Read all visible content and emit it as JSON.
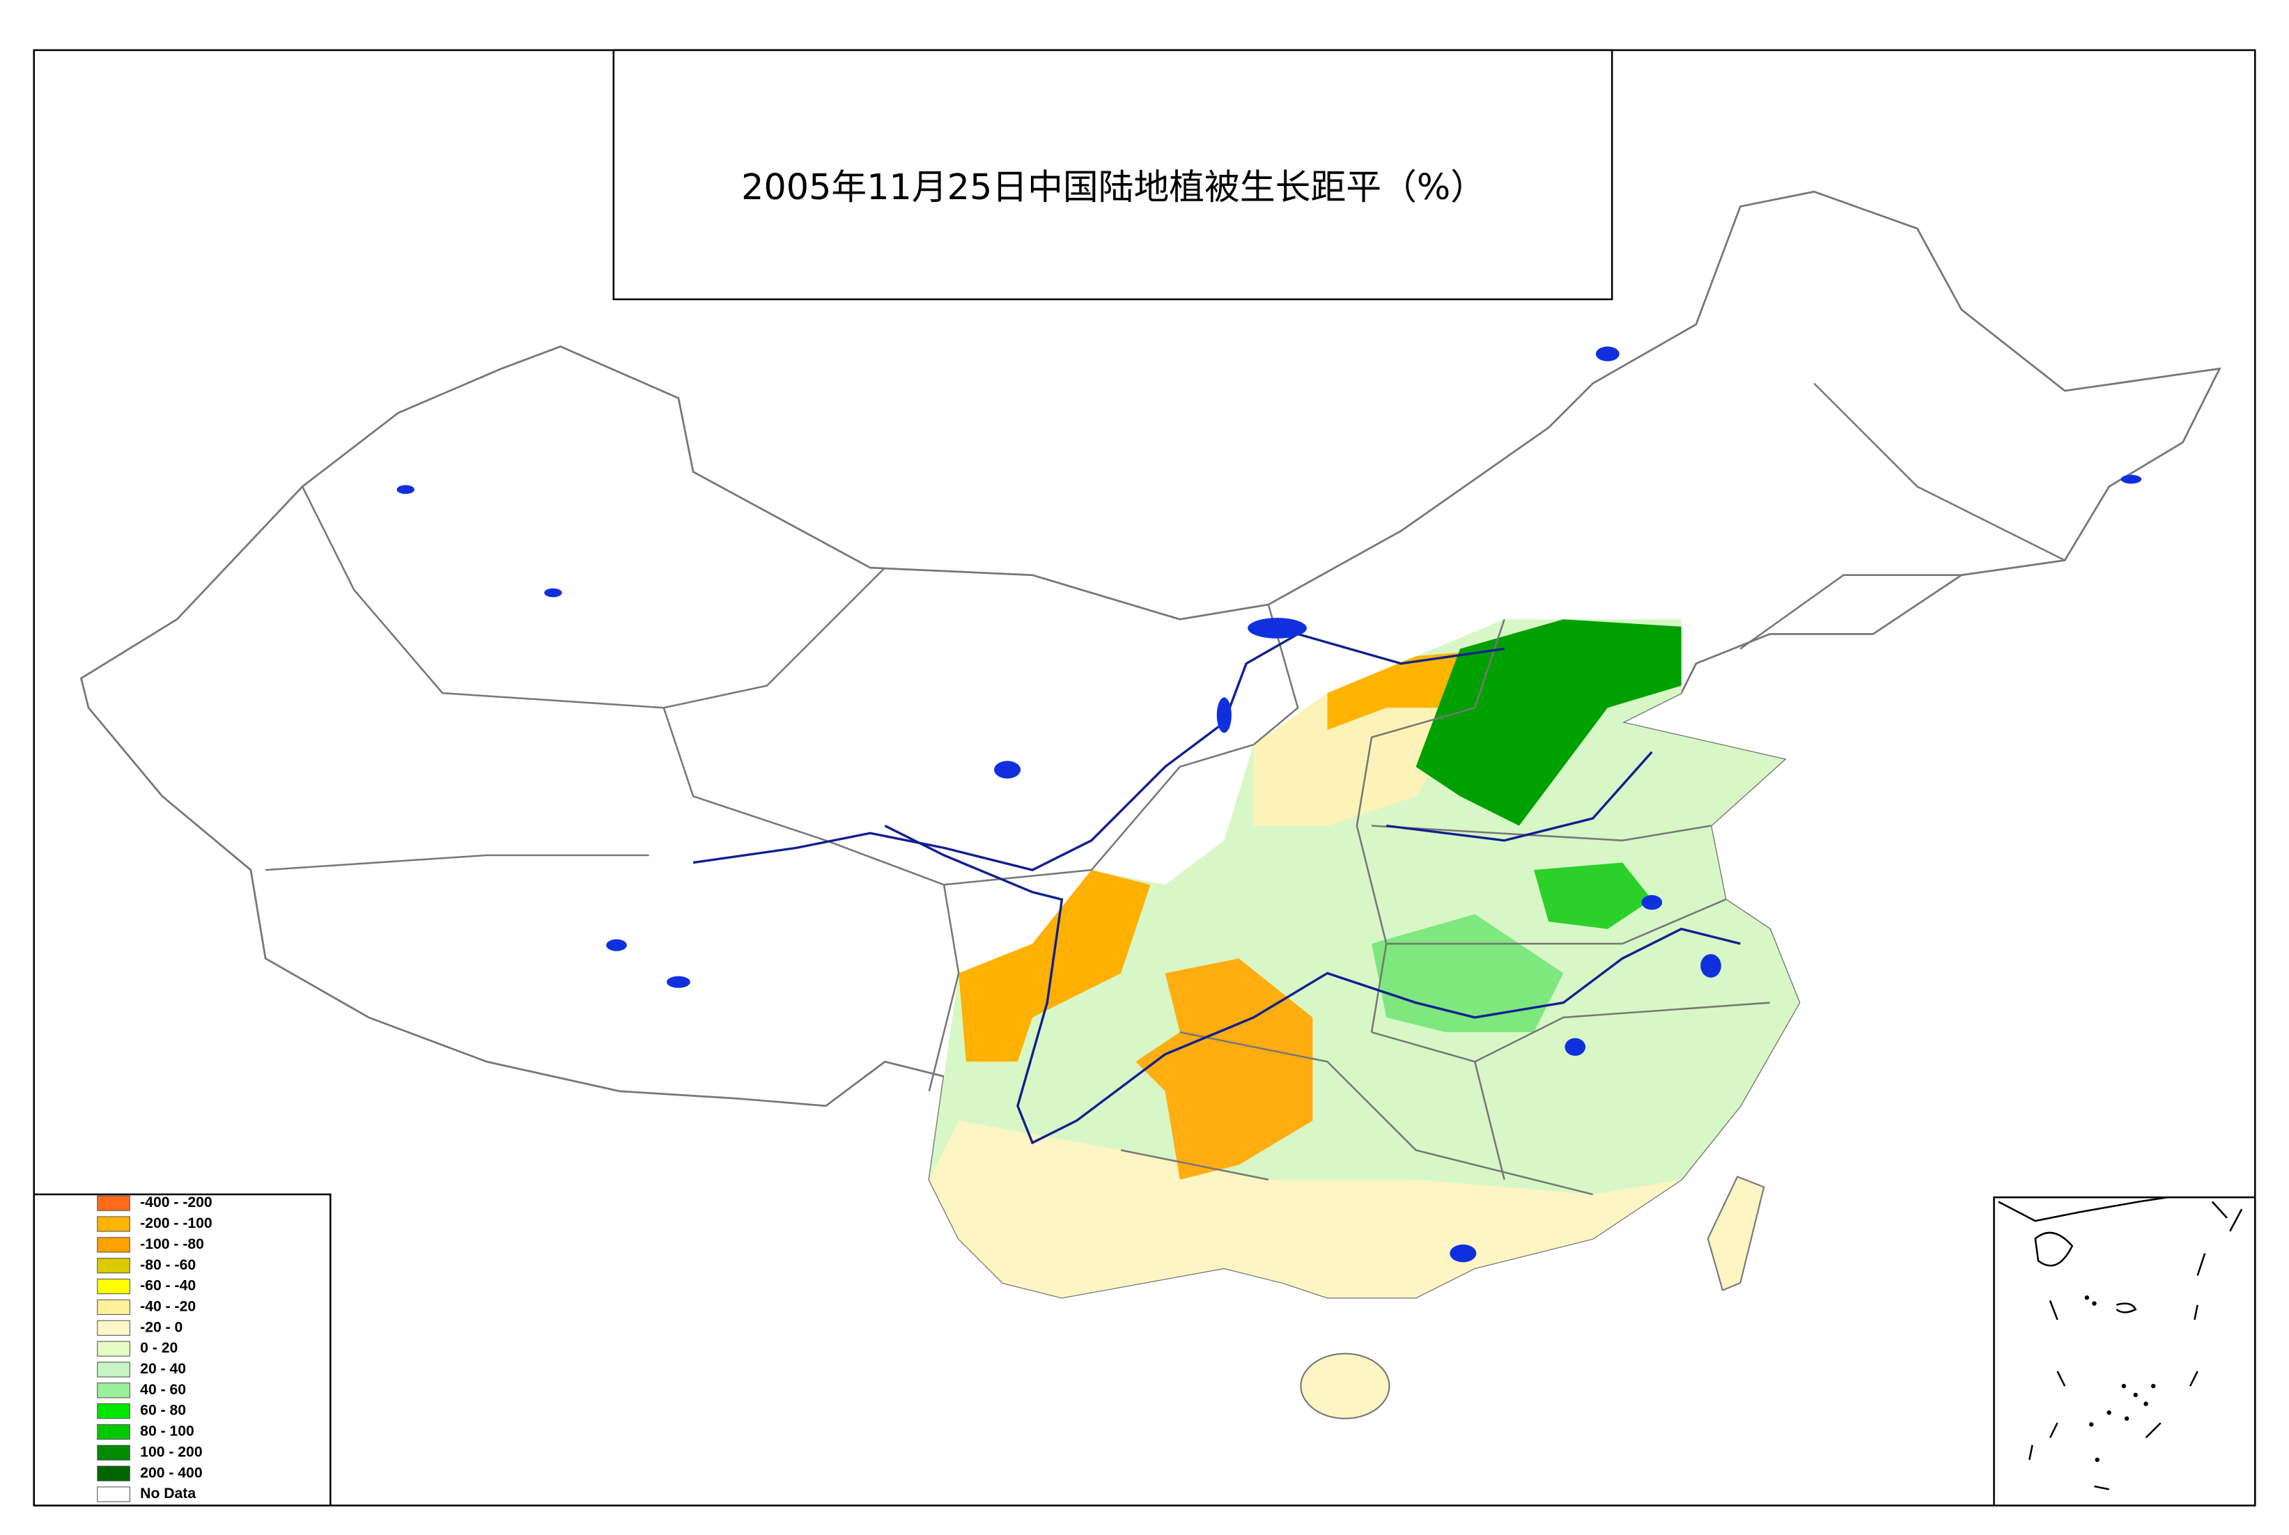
{
  "title": "2005年11月25日中国陆地植被生长距平（%）",
  "legend": {
    "items": [
      {
        "label": "-400 - -200",
        "color": "#ff6a1a"
      },
      {
        "label": "-200 - -100",
        "color": "#ffb400"
      },
      {
        "label": "-100 - -80",
        "color": "#ffa200"
      },
      {
        "label": "-80 - -60",
        "color": "#dccb00"
      },
      {
        "label": "-60 - -40",
        "color": "#ffff00"
      },
      {
        "label": "-40 - -20",
        "color": "#fff09a"
      },
      {
        "label": "-20 - 0",
        "color": "#fff7c8"
      },
      {
        "label": "0 - 20",
        "color": "#e4fbc4"
      },
      {
        "label": "20 - 40",
        "color": "#c6f4c2"
      },
      {
        "label": "40 - 60",
        "color": "#9cf09a"
      },
      {
        "label": "60 - 80",
        "color": "#00e600"
      },
      {
        "label": "80 - 100",
        "color": "#00c800"
      },
      {
        "label": "100 - 200",
        "color": "#008a00"
      },
      {
        "label": "200 - 400",
        "color": "#006400"
      },
      {
        "label": "No Data",
        "color": "#ffffff"
      }
    ]
  }
}
